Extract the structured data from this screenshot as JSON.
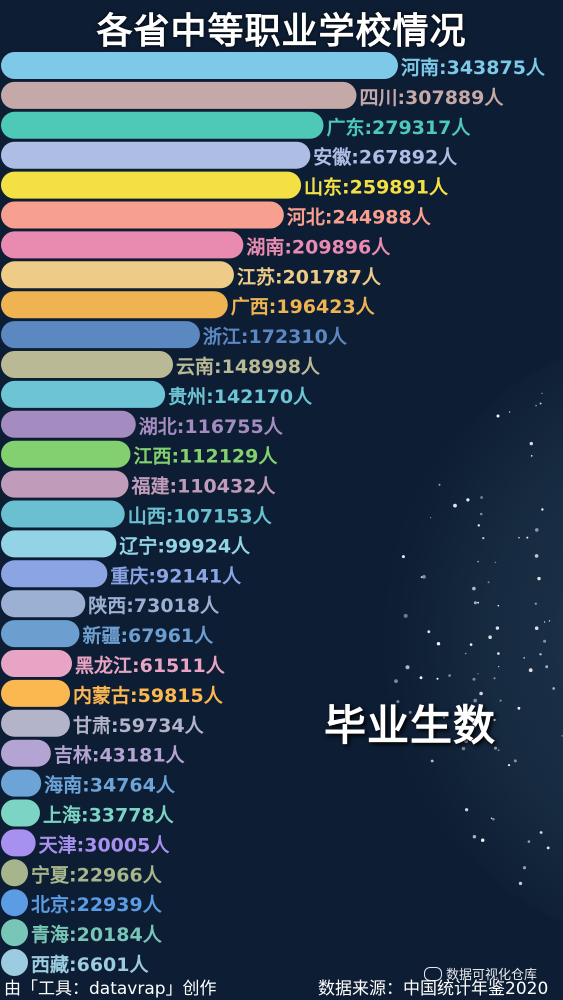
{
  "title": "各省中等职业学校情况",
  "metric_label": "毕业生数",
  "footer": {
    "credit": "由「工具：datavrap」创作",
    "source": "数据来源：中国统计年鉴2020"
  },
  "watermark": "数据可视化仓库",
  "unit": "人",
  "chart_data": {
    "type": "bar",
    "orientation": "horizontal",
    "title": "各省中等职业学校情况",
    "subtitle": "毕业生数",
    "categories": [
      "河南",
      "四川",
      "广东",
      "安徽",
      "山东",
      "河北",
      "湖南",
      "江苏",
      "广西",
      "浙江",
      "云南",
      "贵州",
      "湖北",
      "江西",
      "福建",
      "山西",
      "辽宁",
      "重庆",
      "陕西",
      "新疆",
      "黑龙江",
      "内蒙古",
      "甘肃",
      "吉林",
      "海南",
      "上海",
      "天津",
      "宁夏",
      "北京",
      "青海",
      "西藏"
    ],
    "values": [
      343875,
      307889,
      279317,
      267892,
      259891,
      244988,
      209896,
      201787,
      196423,
      172310,
      148998,
      142170,
      116755,
      112129,
      110432,
      107153,
      99924,
      92141,
      73018,
      67961,
      61511,
      59815,
      59734,
      43181,
      34764,
      33778,
      30005,
      22966,
      22939,
      20184,
      6601
    ],
    "colors": [
      "#7ec8e8",
      "#c4a9a8",
      "#4ec9b8",
      "#aebde4",
      "#f2e044",
      "#f8a090",
      "#e98bb0",
      "#eecb86",
      "#efb451",
      "#5b88c0",
      "#bab996",
      "#6cc4d4",
      "#a48cc0",
      "#82d070",
      "#c09cba",
      "#6ac0d0",
      "#92d4e6",
      "#8aa4e4",
      "#9cb0d4",
      "#6c9ed0",
      "#e8a4c4",
      "#fcb850",
      "#b3b3c9",
      "#b4a4d4",
      "#6ca4d8",
      "#7cd4c4",
      "#a890f0",
      "#a6b58c",
      "#5c9ce4",
      "#78c6b8",
      "#9ccce0"
    ],
    "xlim": [
      0,
      343875
    ]
  }
}
